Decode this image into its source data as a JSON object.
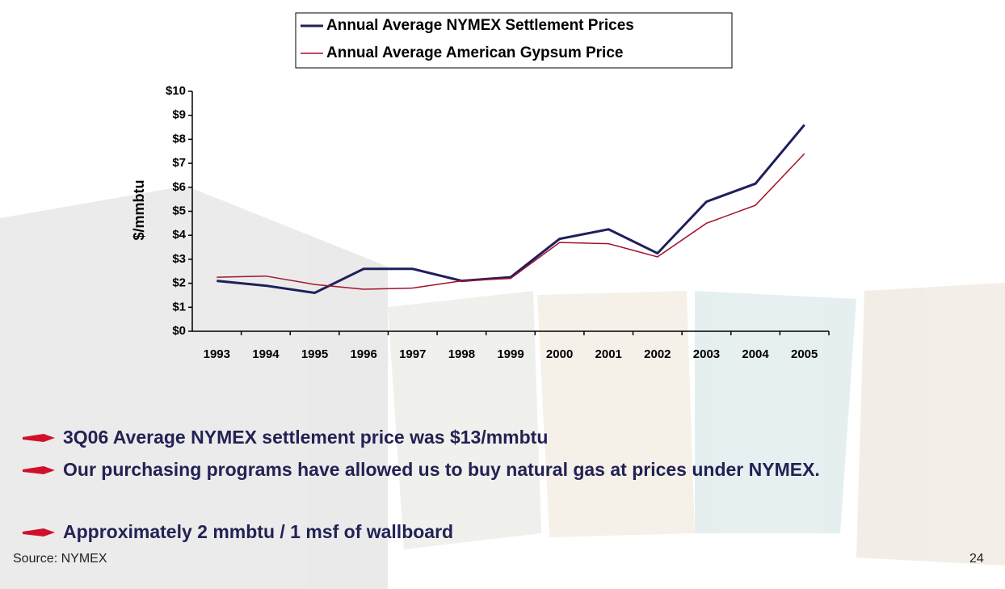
{
  "chart_data": {
    "type": "line",
    "y_label": "$/mmbtu",
    "categories": [
      "1993",
      "1994",
      "1995",
      "1996",
      "1997",
      "1998",
      "1999",
      "2000",
      "2001",
      "2002",
      "2003",
      "2004",
      "2005"
    ],
    "series": [
      {
        "name": "Annual Average NYMEX Settlement Prices",
        "color": "#1f1f5c",
        "values": [
          2.1,
          1.9,
          1.6,
          2.6,
          2.6,
          2.1,
          2.25,
          3.85,
          4.25,
          3.25,
          5.4,
          6.15,
          8.6
        ]
      },
      {
        "name": "Annual Average American Gypsum Price",
        "color": "#a3122e",
        "values": [
          2.25,
          2.3,
          1.95,
          1.75,
          1.8,
          2.1,
          2.2,
          3.7,
          3.65,
          3.1,
          4.5,
          5.25,
          7.4
        ]
      }
    ],
    "ylim": [
      0,
      10
    ],
    "yticks": [
      {
        "value": 0,
        "label": "$0"
      },
      {
        "value": 1,
        "label": "$1"
      },
      {
        "value": 2,
        "label": "$2"
      },
      {
        "value": 3,
        "label": "$3"
      },
      {
        "value": 4,
        "label": "$4"
      },
      {
        "value": 5,
        "label": "$5"
      },
      {
        "value": 6,
        "label": "$6"
      },
      {
        "value": 7,
        "label": "$7"
      },
      {
        "value": 8,
        "label": "$8"
      },
      {
        "value": 9,
        "label": "$9"
      },
      {
        "value": 10,
        "label": "$10"
      }
    ],
    "legend": "top"
  },
  "bullets": [
    "3Q06 Average NYMEX settlement price was $13/mmbtu",
    "Our purchasing programs have allowed us to buy natural gas at prices under NYMEX.",
    "Approximately 2 mmbtu / 1 msf of wallboard"
  ],
  "source": "Source:  NYMEX",
  "page_number": "24"
}
